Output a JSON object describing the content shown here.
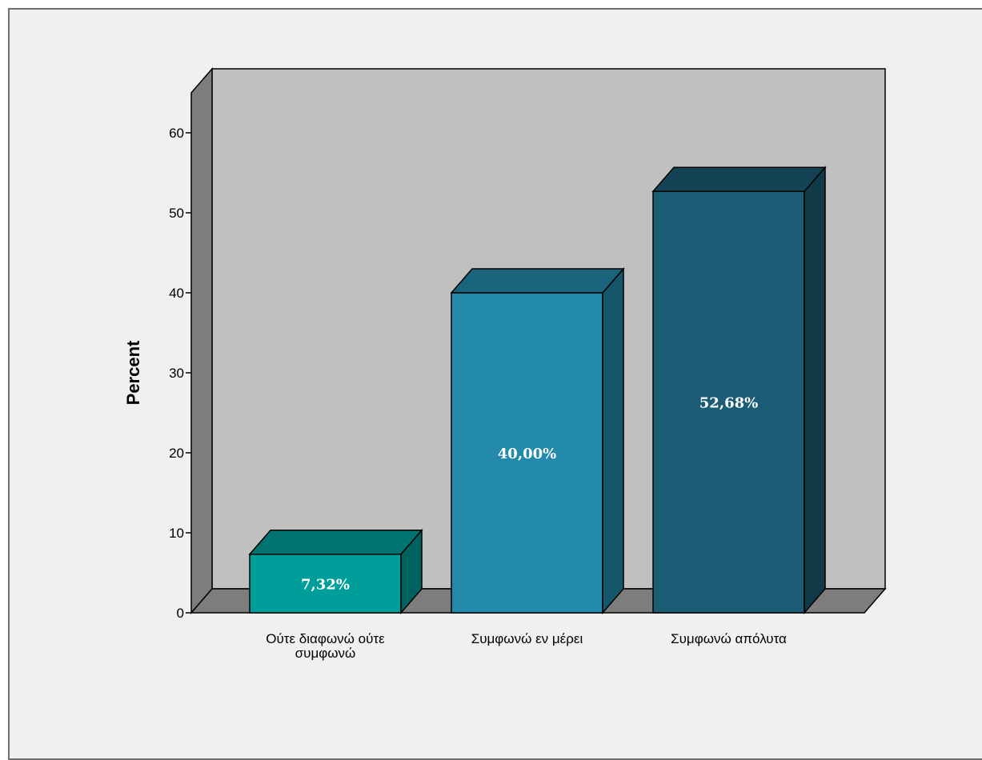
{
  "chart_data": {
    "type": "bar",
    "style": "3d",
    "categories": [
      "Ούτε διαφωνώ ούτε συμφωνώ",
      "Συμφωνώ εν μέρει",
      "Συμφωνώ απόλυτα"
    ],
    "category_lines": [
      [
        "Ούτε διαφωνώ ούτε",
        "συμφωνώ"
      ],
      [
        "Συμφωνώ εν μέρει"
      ],
      [
        "Συμφωνώ απόλυτα"
      ]
    ],
    "values": [
      7.32,
      40.0,
      52.68
    ],
    "data_labels": [
      "7,32%",
      "40,00%",
      "52,68%"
    ],
    "bar_colors": [
      "#009e9a",
      "#238aab",
      "#1b5d74"
    ],
    "ylabel": "Percent",
    "xlabel": "",
    "title": "",
    "ylim": [
      0,
      65
    ],
    "yticks": [
      0,
      10,
      20,
      30,
      40,
      50,
      60
    ],
    "grid": false,
    "legend": "none"
  }
}
